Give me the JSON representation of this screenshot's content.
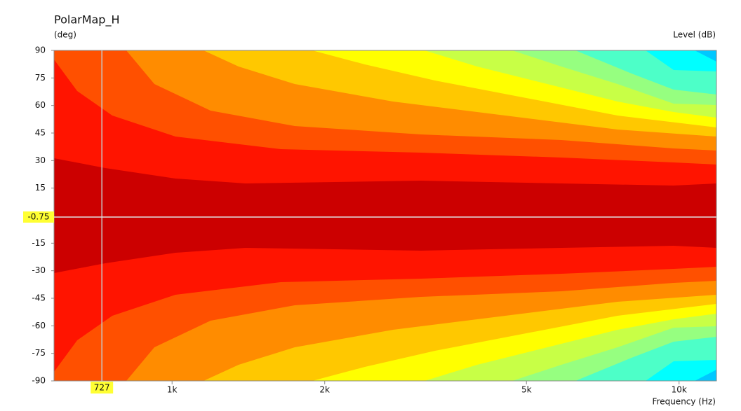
{
  "chart_data": {
    "type": "contour",
    "title": "PolarMap_H",
    "y_label": "(deg)",
    "level_label": "Level (dB)",
    "x_label": "Frequency (Hz)",
    "x_scale": "log",
    "xlim": [
      585,
      11850
    ],
    "ylim": [
      -90,
      90
    ],
    "xticks": [
      {
        "value": 1000,
        "label": "1k"
      },
      {
        "value": 2000,
        "label": "2k"
      },
      {
        "value": 5000,
        "label": "5k"
      },
      {
        "value": 10000,
        "label": "10k"
      }
    ],
    "yticks": [
      90,
      75,
      60,
      45,
      30,
      15,
      -15,
      -30,
      -45,
      -60,
      -75,
      -90
    ],
    "cursor": {
      "x": 727,
      "y": -0.75
    }
  }
}
